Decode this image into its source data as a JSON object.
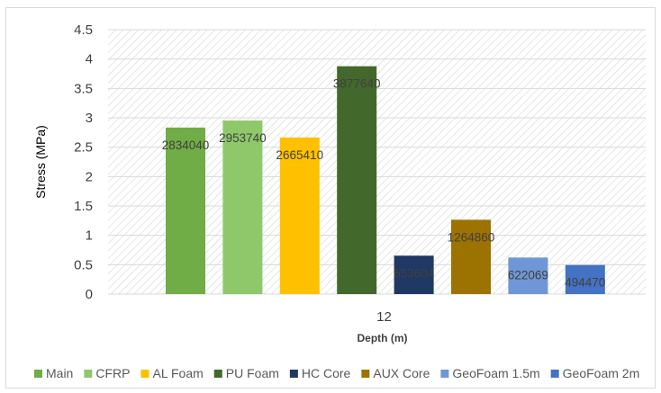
{
  "chart_data": {
    "type": "bar",
    "title": "",
    "xlabel": "Depth (m)",
    "ylabel": "Stress (MPa)",
    "ylim": [
      0,
      4.5
    ],
    "yticks": [
      "0",
      "0.5",
      "1",
      "1.5",
      "2",
      "2.5",
      "3",
      "3.5",
      "4",
      "4.5"
    ],
    "categories": [
      "12"
    ],
    "grid": true,
    "legend_position": "bottom",
    "series": [
      {
        "name": "Main",
        "values": [
          2.83404
        ],
        "label": "2834040",
        "color": "#70ad47"
      },
      {
        "name": "CFRP",
        "values": [
          2.95374
        ],
        "label": "2953740",
        "color": "#8fc86a"
      },
      {
        "name": "AL Foam",
        "values": [
          2.66541
        ],
        "label": "2665410",
        "color": "#ffc000"
      },
      {
        "name": "PU Foam",
        "values": [
          3.87764
        ],
        "label": "3877640",
        "color": "#43682b"
      },
      {
        "name": "HC Core",
        "values": [
          0.653604
        ],
        "label": "653604",
        "color": "#203864"
      },
      {
        "name": "AUX Core",
        "values": [
          1.26486
        ],
        "label": "1264860",
        "color": "#9c7200"
      },
      {
        "name": "GeoFoam 1.5m",
        "values": [
          0.622069
        ],
        "label": "622069",
        "color": "#6f96d6"
      },
      {
        "name": "GeoFoam 2m",
        "values": [
          0.49447
        ],
        "label": "494470",
        "color": "#4472c4"
      }
    ]
  }
}
